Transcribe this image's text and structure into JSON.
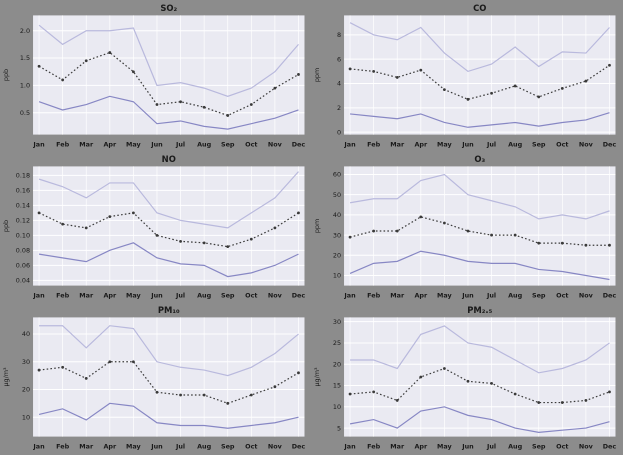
{
  "theme": {
    "figure_bg": "#8c8c8c",
    "plot_bg": "#eaeaf2",
    "grid_color": "#ffffff",
    "text_color": "#1a1a1a",
    "upper_line_color": "#b9b9dd",
    "mean_line_color": "#3a3a3a",
    "lower_line_color": "#8787c4"
  },
  "chart_data": [
    {
      "type": "line",
      "title": "SO₂",
      "ylabel": "ppb",
      "categories": [
        "Jan",
        "Feb",
        "Mar",
        "Apr",
        "May",
        "Jun",
        "Jul",
        "Aug",
        "Sep",
        "Oct",
        "Nov",
        "Dec"
      ],
      "ytick_values": [
        0.5,
        1.0,
        1.5,
        2.0
      ],
      "ytick_labels": [
        "0.5",
        "1.0",
        "1.5",
        "2.0"
      ],
      "ylim": [
        0.1,
        2.28
      ],
      "grid": true,
      "legend": "none",
      "series": [
        {
          "name": "upper",
          "style": "solid",
          "values": [
            2.1,
            1.75,
            2.0,
            2.0,
            2.05,
            1.0,
            1.05,
            0.95,
            0.8,
            0.95,
            1.25,
            1.75
          ]
        },
        {
          "name": "mean",
          "style": "dotted-markers",
          "values": [
            1.35,
            1.1,
            1.45,
            1.6,
            1.25,
            0.65,
            0.7,
            0.6,
            0.45,
            0.65,
            0.95,
            1.2
          ]
        },
        {
          "name": "lower",
          "style": "solid",
          "values": [
            0.7,
            0.55,
            0.65,
            0.8,
            0.7,
            0.3,
            0.35,
            0.25,
            0.2,
            0.3,
            0.4,
            0.55
          ]
        }
      ]
    },
    {
      "type": "line",
      "title": "CO",
      "ylabel": "ppm",
      "categories": [
        "Jan",
        "Feb",
        "Mar",
        "Apr",
        "May",
        "Jun",
        "Jul",
        "Aug",
        "Sep",
        "Oct",
        "Nov",
        "Dec"
      ],
      "ytick_values": [
        0,
        2,
        4,
        6,
        8
      ],
      "ytick_labels": [
        "0",
        "2",
        "4",
        "6",
        "8"
      ],
      "ylim": [
        -0.2,
        9.6
      ],
      "grid": true,
      "legend": "none",
      "series": [
        {
          "name": "upper",
          "style": "solid",
          "values": [
            9.0,
            8.0,
            7.6,
            8.6,
            6.5,
            5.0,
            5.6,
            7.0,
            5.4,
            6.6,
            6.5,
            8.6
          ]
        },
        {
          "name": "mean",
          "style": "dotted-markers",
          "values": [
            5.2,
            5.0,
            4.5,
            5.1,
            3.5,
            2.7,
            3.2,
            3.8,
            2.9,
            3.6,
            4.2,
            5.5
          ]
        },
        {
          "name": "lower",
          "style": "solid",
          "values": [
            1.5,
            1.3,
            1.1,
            1.5,
            0.8,
            0.4,
            0.6,
            0.8,
            0.5,
            0.8,
            1.0,
            1.6
          ]
        }
      ]
    },
    {
      "type": "line",
      "title": "NO",
      "ylabel": "ppb",
      "categories": [
        "Jan",
        "Feb",
        "Mar",
        "Apr",
        "May",
        "Jun",
        "Jul",
        "Aug",
        "Sep",
        "Oct",
        "Nov",
        "Dec"
      ],
      "ytick_values": [
        0.04,
        0.06,
        0.08,
        0.1,
        0.12,
        0.14,
        0.16,
        0.18
      ],
      "ytick_labels": [
        "0.04",
        "0.06",
        "0.08",
        "0.10",
        "0.12",
        "0.14",
        "0.16",
        "0.18"
      ],
      "ylim": [
        0.033,
        0.192
      ],
      "grid": true,
      "legend": "none",
      "series": [
        {
          "name": "upper",
          "style": "solid",
          "values": [
            0.175,
            0.165,
            0.15,
            0.17,
            0.17,
            0.13,
            0.12,
            0.115,
            0.11,
            0.13,
            0.15,
            0.185
          ]
        },
        {
          "name": "mean",
          "style": "dotted-markers",
          "values": [
            0.13,
            0.115,
            0.11,
            0.125,
            0.13,
            0.1,
            0.092,
            0.09,
            0.085,
            0.095,
            0.11,
            0.13
          ]
        },
        {
          "name": "lower",
          "style": "solid",
          "values": [
            0.075,
            0.07,
            0.065,
            0.08,
            0.09,
            0.07,
            0.062,
            0.06,
            0.045,
            0.05,
            0.06,
            0.075
          ]
        }
      ]
    },
    {
      "type": "line",
      "title": "O₃",
      "ylabel": "ppm",
      "categories": [
        "Jan",
        "Feb",
        "Mar",
        "Apr",
        "May",
        "Jun",
        "Jul",
        "Aug",
        "Sep",
        "Oct",
        "Nov",
        "Dec"
      ],
      "ytick_values": [
        10,
        20,
        30,
        40,
        50,
        60
      ],
      "ytick_labels": [
        "10",
        "20",
        "30",
        "40",
        "50",
        "60"
      ],
      "ylim": [
        5,
        64
      ],
      "grid": true,
      "legend": "none",
      "series": [
        {
          "name": "upper",
          "style": "solid",
          "values": [
            46,
            48,
            48,
            57,
            60,
            50,
            47,
            44,
            38,
            40,
            38,
            42
          ]
        },
        {
          "name": "mean",
          "style": "dotted-markers",
          "values": [
            29,
            32,
            32,
            39,
            36,
            32,
            30,
            30,
            26,
            26,
            25,
            25
          ]
        },
        {
          "name": "lower",
          "style": "solid",
          "values": [
            11,
            16,
            17,
            22,
            20,
            17,
            16,
            16,
            13,
            12,
            10,
            8
          ]
        }
      ]
    },
    {
      "type": "line",
      "title": "PM₁₀",
      "ylabel": "μg/m³",
      "categories": [
        "Jan",
        "Feb",
        "Mar",
        "Apr",
        "May",
        "Jun",
        "Jul",
        "Aug",
        "Sep",
        "Oct",
        "Nov",
        "Dec"
      ],
      "ytick_values": [
        10,
        20,
        30,
        40
      ],
      "ytick_labels": [
        "10",
        "20",
        "30",
        "40"
      ],
      "ylim": [
        3,
        46
      ],
      "grid": true,
      "legend": "none",
      "series": [
        {
          "name": "upper",
          "style": "solid",
          "values": [
            43,
            43,
            35,
            43,
            42,
            30,
            28,
            27,
            25,
            28,
            33,
            40
          ]
        },
        {
          "name": "mean",
          "style": "dotted-markers",
          "values": [
            27,
            28,
            24,
            30,
            30,
            19,
            18,
            18,
            15,
            18,
            21,
            26
          ]
        },
        {
          "name": "lower",
          "style": "solid",
          "values": [
            11,
            13,
            9,
            15,
            14,
            8,
            7,
            7,
            6,
            7,
            8,
            10
          ]
        }
      ]
    },
    {
      "type": "line",
      "title": "PM₂.₅",
      "ylabel": "μg/m³",
      "categories": [
        "Jan",
        "Feb",
        "Mar",
        "Apr",
        "May",
        "Jun",
        "Jul",
        "Aug",
        "Sep",
        "Oct",
        "Nov",
        "Dec"
      ],
      "ytick_values": [
        5,
        10,
        15,
        20,
        25,
        30
      ],
      "ytick_labels": [
        "5",
        "10",
        "15",
        "20",
        "25",
        "30"
      ],
      "ylim": [
        3,
        31
      ],
      "grid": true,
      "legend": "none",
      "series": [
        {
          "name": "upper",
          "style": "solid",
          "values": [
            21,
            21,
            19,
            27,
            29,
            25,
            24,
            21,
            18,
            19,
            21,
            25
          ]
        },
        {
          "name": "mean",
          "style": "dotted-markers",
          "values": [
            13,
            13.5,
            11.5,
            17,
            19,
            16,
            15.5,
            13,
            11,
            11,
            11.5,
            13.5
          ]
        },
        {
          "name": "lower",
          "style": "solid",
          "values": [
            6,
            7,
            5,
            9,
            10,
            8,
            7,
            5,
            4,
            4.5,
            5,
            6.5
          ]
        }
      ]
    }
  ]
}
